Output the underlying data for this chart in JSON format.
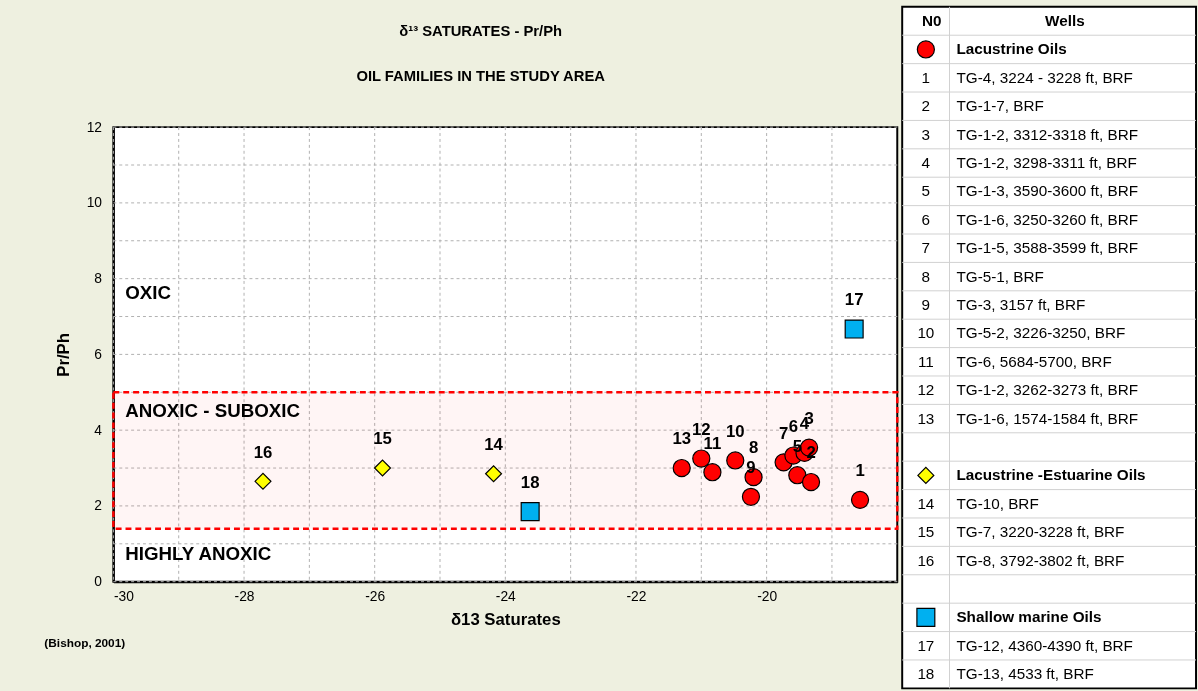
{
  "chart_data": {
    "type": "scatter",
    "title": "δ¹³ SATURATES - Pr/Ph",
    "subtitle": "OIL FAMILIES IN THE STUDY AREA",
    "xlabel": "δ13 Saturates",
    "ylabel": "Pr/Ph",
    "xlim": [
      -30,
      -18
    ],
    "ylim": [
      0,
      12
    ],
    "xticks": [
      -30,
      {
        "value": -29,
        "label": null
      },
      -28,
      {
        "value": -27,
        "label": null
      },
      -26,
      {
        "value": -25,
        "label": null
      },
      -24,
      {
        "value": -23,
        "label": null
      },
      -22,
      {
        "value": -21,
        "label": null
      },
      -20,
      {
        "value": -19,
        "label": null
      }
    ],
    "yticks": [
      0,
      {
        "value": 1,
        "label": null
      },
      2,
      {
        "value": 3,
        "label": null
      },
      4,
      {
        "value": 5,
        "label": null
      },
      6,
      {
        "value": 7,
        "label": null
      },
      8,
      {
        "value": 9,
        "label": null
      },
      10,
      {
        "value": 11,
        "label": null
      },
      12
    ],
    "grid": true,
    "legend": "right",
    "series": [
      {
        "name": "Lacustrine Oils",
        "color": "#ff0000",
        "marker": "circle",
        "x": [
          -18.57,
          -19.32,
          -19.35,
          -19.42,
          -19.53,
          -19.59,
          -19.74,
          -20.2,
          -20.24,
          -20.48,
          -20.83,
          -21.0,
          -21.3
        ],
        "values": [
          2.16,
          2.63,
          3.54,
          3.4,
          2.81,
          3.33,
          3.15,
          2.76,
          2.24,
          3.2,
          2.89,
          3.25,
          3.0
        ]
      },
      {
        "name": "Lacustrine -Estuarine Oils",
        "color": "#ffff00",
        "marker": "diamond",
        "x": [
          -24.18,
          -25.88,
          -27.71
        ],
        "values": [
          2.85,
          3.0,
          2.65
        ]
      },
      {
        "name": "Shallow marine Oils",
        "color": "#00b0f0",
        "marker": "square",
        "x": [
          -18.66,
          -23.62
        ],
        "values": [
          6.67,
          1.85
        ]
      }
    ],
    "bands": [
      {
        "axis": "y",
        "from": 1.4,
        "to": 5.0,
        "color": "#ff0000"
      }
    ],
    "annotations": [
      "OXIC",
      "ANOXIC - SUBOXIC",
      "HIGHLY ANOXIC",
      {
        "text": "1",
        "x": -18.57,
        "y": 2.16
      },
      {
        "text": "2",
        "x": -19.32,
        "y": 2.63
      },
      {
        "text": "3",
        "x": -19.35,
        "y": 3.54
      },
      {
        "text": "4",
        "x": -19.42,
        "y": 3.4
      },
      {
        "text": "5",
        "x": -19.53,
        "y": 2.81
      },
      {
        "text": "6",
        "x": -19.59,
        "y": 3.33
      },
      {
        "text": "7",
        "x": -19.74,
        "y": 3.15
      },
      {
        "text": "8",
        "x": -20.2,
        "y": 2.76
      },
      {
        "text": "9",
        "x": -20.24,
        "y": 2.24
      },
      {
        "text": "10",
        "x": -20.48,
        "y": 3.2
      },
      {
        "text": "11",
        "x": -20.83,
        "y": 2.89
      },
      {
        "text": "12",
        "x": -21.0,
        "y": 3.25
      },
      {
        "text": "13",
        "x": -21.3,
        "y": 3.0
      },
      {
        "text": "14",
        "x": -24.18,
        "y": 2.85
      },
      {
        "text": "15",
        "x": -25.88,
        "y": 3.0
      },
      {
        "text": "16",
        "x": -27.71,
        "y": 2.65
      },
      {
        "text": "17",
        "x": -18.66,
        "y": 6.67
      },
      {
        "text": "18",
        "x": -23.62,
        "y": 1.85
      },
      "(Bishop, 2001)",
      "N0",
      "Wells",
      "TG-4, 3224 - 3228 ft, BRF",
      "TG-1-7, BRF",
      "TG-1-2, 3312-3318 ft, BRF",
      "TG-1-2, 3298-3311 ft, BRF",
      "TG-1-3, 3590-3600 ft, BRF",
      "TG-1-6, 3250-3260 ft, BRF",
      "TG-1-5, 3588-3599 ft, BRF",
      "TG-5-1, BRF",
      "TG-3,  3157 ft, BRF",
      "TG-5-2, 3226-3250, BRF",
      "TG-6,  5684-5700, BRF",
      "TG-1-2, 3262-3273 ft, BRF",
      "TG-1-6, 1574-1584 ft, BRF",
      "TG-10,  BRF",
      "TG-7, 3220-3228 ft, BRF",
      "TG-8,  3792-3802 ft, BRF",
      "TG-12, 4360-4390 ft, BRF",
      "TG-13, 4533 ft, BRF"
    ]
  }
}
